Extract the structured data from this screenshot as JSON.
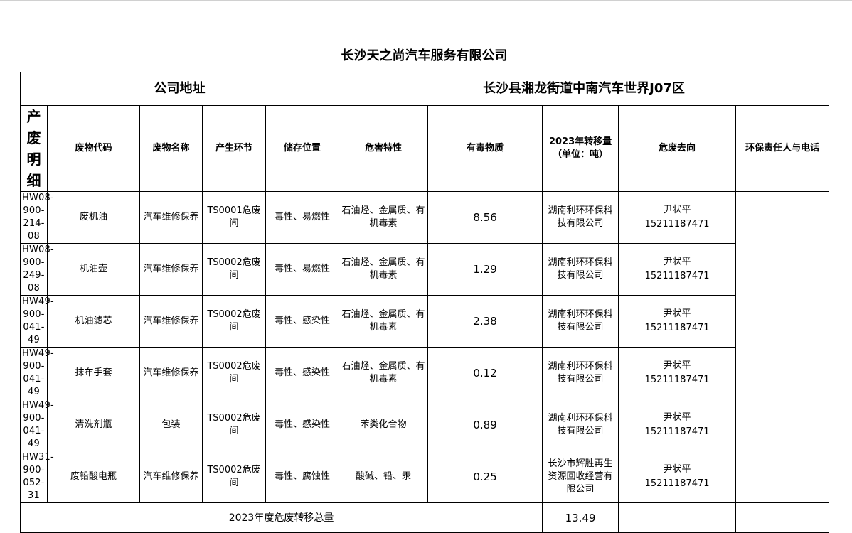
{
  "title": "长沙天之尚汽车服务有限公司",
  "address": {
    "label": "公司地址",
    "value": "长沙县湘龙街道中南汽车世界J07区"
  },
  "side_label": "产废明细",
  "columns": [
    "废物代码",
    "废物名称",
    "产生环节",
    "储存位置",
    "危害特性",
    "有毒物质",
    "2023年转移量",
    "（单位：吨）",
    "危废去向",
    "环保责任人与电话"
  ],
  "rows": [
    {
      "code": "HW08-900-214-08",
      "name": "废机油",
      "stage": "汽车维修保养",
      "storage": "TS0001危废间",
      "hazard": "毒性、易燃性",
      "toxic": "石油烃、金属质、有机毒素",
      "amount": "8.56",
      "dest": "湖南利环环保科技有限公司",
      "person": "尹状平",
      "phone": "15211187471"
    },
    {
      "code": "HW08-900-249-08",
      "name": "机油壶",
      "stage": "汽车维修保养",
      "storage": "TS0002危废间",
      "hazard": "毒性、易燃性",
      "toxic": "石油烃、金属质、有机毒素",
      "amount": "1.29",
      "dest": "湖南利环环保科技有限公司",
      "person": "尹状平",
      "phone": "15211187471"
    },
    {
      "code": "HW49-900-041-49",
      "name": "机油滤芯",
      "stage": "汽车维修保养",
      "storage": "TS0002危废间",
      "hazard": "毒性、感染性",
      "toxic": "石油烃、金属质、有机毒素",
      "amount": "2.38",
      "dest": "湖南利环环保科技有限公司",
      "person": "尹状平",
      "phone": "15211187471"
    },
    {
      "code": "HW49-900-041-49",
      "name": "抹布手套",
      "stage": "汽车维修保养",
      "storage": "TS0002危废间",
      "hazard": "毒性、感染性",
      "toxic": "石油烃、金属质、有机毒素",
      "amount": "0.12",
      "dest": "湖南利环环保科技有限公司",
      "person": "尹状平",
      "phone": "15211187471"
    },
    {
      "code": "HW49-900-041-49",
      "name": "清洗剂瓶",
      "stage": "包装",
      "storage": "TS0002危废间",
      "hazard": "毒性、感染性",
      "toxic": "苯类化合物",
      "amount": "0.89",
      "dest": "湖南利环环保科技有限公司",
      "person": "尹状平",
      "phone": "15211187471"
    },
    {
      "code": "HW31-900-052-31",
      "name": "废铅酸电瓶",
      "stage": "汽车维修保养",
      "storage": "TS0002危废间",
      "hazard": "毒性、腐蚀性",
      "toxic": "酸碱、铅、汞",
      "amount": "0.25",
      "dest": "长沙市辉胜再生资源回收经营有限公司",
      "person": "尹状平",
      "phone": "15211187471"
    }
  ],
  "total": {
    "label": "2023年度危废转移总量",
    "value": "13.49"
  }
}
